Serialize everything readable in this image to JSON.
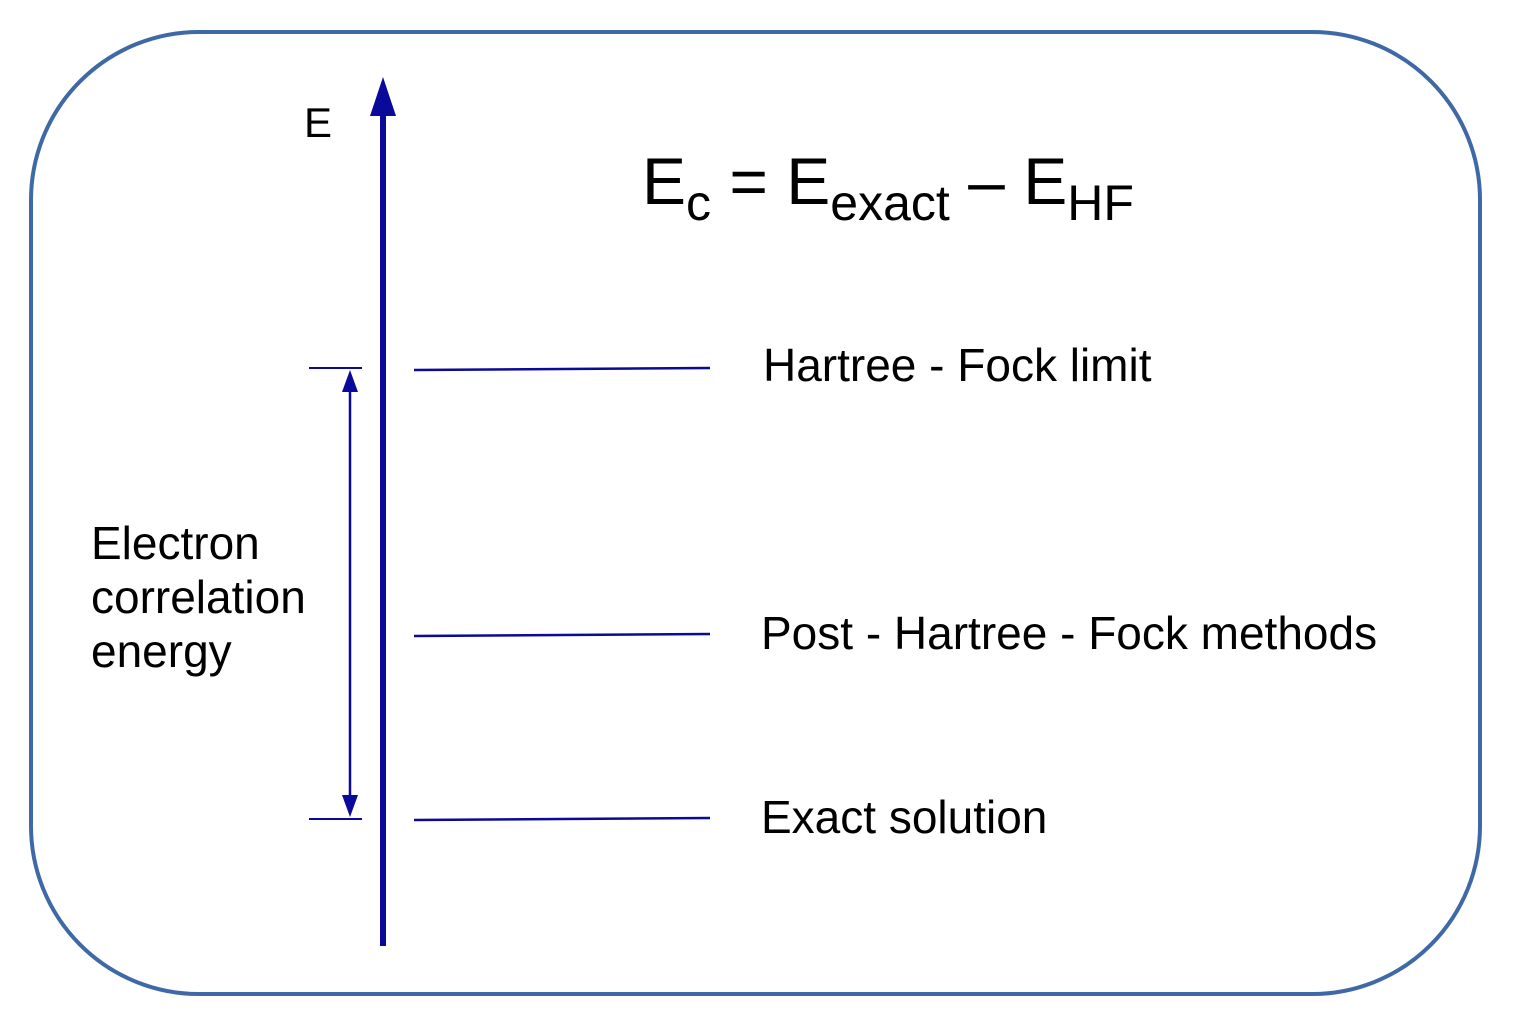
{
  "axis": {
    "label": "E"
  },
  "formula": {
    "lhs_symbol": "E",
    "lhs_sub": "c",
    "equals": "=",
    "term1_symbol": "E",
    "term1_sub": "exact",
    "minus": "–",
    "term2_symbol": "E",
    "term2_sub": "HF"
  },
  "levels": [
    {
      "label": "Hartree - Fock limit"
    },
    {
      "label": "Post - Hartree - Fock methods"
    },
    {
      "label": "Exact solution"
    }
  ],
  "correlation_label": {
    "line1": "Electron",
    "line2": "correlation",
    "line3": "energy"
  },
  "colors": {
    "frame": "#3f69a6",
    "axis": "#0a0a9a",
    "text": "#000000"
  }
}
